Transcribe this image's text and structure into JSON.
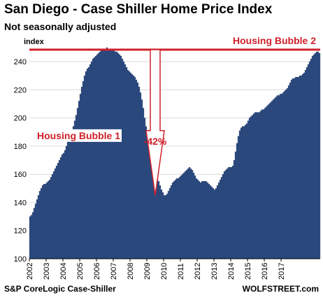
{
  "chart_data": {
    "type": "bar",
    "title": "San Diego - Case Shiller Home Price Index",
    "subtitle": "Not seasonally adjusted",
    "ylabel": "index",
    "source": "S&P CoreLogic Case-Shiller",
    "watermark": "WOLFSTREET.com",
    "ylim": [
      100,
      255
    ],
    "yticks": [
      100,
      120,
      140,
      160,
      180,
      200,
      220,
      240
    ],
    "x_tick_labels": [
      "2002",
      "2003",
      "2004",
      "2005",
      "2006",
      "2007",
      "2008",
      "2009",
      "2010",
      "2011",
      "2012",
      "2013",
      "2014",
      "2015",
      "2016",
      "2017"
    ],
    "bar_color": "#2f4f86",
    "bar_edge_color": "#172b52",
    "annotation_color": "#d0202a",
    "peak_line_value": 248.5,
    "annotations": {
      "bubble1": "Housing Bubble 1",
      "bubble2": "Housing Bubble 2",
      "decline": "-42%"
    },
    "x_start": "2002-01",
    "values": [
      130,
      131,
      133,
      136,
      139,
      142,
      145,
      148,
      150,
      152,
      153,
      153,
      154,
      155,
      156,
      158,
      160,
      162,
      164,
      166,
      168,
      170,
      172,
      174,
      175,
      177,
      180,
      183,
      185,
      187,
      190,
      194,
      198,
      202,
      207,
      212,
      217,
      222,
      226,
      230,
      233,
      235,
      236,
      238,
      240,
      242,
      243,
      244,
      245,
      246,
      247,
      248,
      249,
      249,
      249,
      250,
      249,
      249,
      248,
      248,
      248,
      247,
      247,
      246,
      245,
      244,
      242,
      240,
      238,
      236,
      234,
      233,
      232,
      231,
      230,
      229,
      227,
      225,
      222,
      218,
      213,
      207,
      200,
      194,
      188,
      182,
      177,
      173,
      169,
      165,
      162,
      158,
      155,
      152,
      149,
      147,
      145,
      145,
      146,
      148,
      150,
      152,
      154,
      155,
      156,
      157,
      157,
      158,
      159,
      160,
      161,
      162,
      163,
      164,
      165,
      164,
      163,
      161,
      159,
      157,
      156,
      155,
      154,
      155,
      155,
      155,
      155,
      154,
      153,
      152,
      151,
      150,
      149,
      150,
      152,
      154,
      156,
      158,
      160,
      162,
      163,
      164,
      165,
      165,
      165,
      166,
      170,
      176,
      182,
      187,
      191,
      193,
      194,
      194,
      195,
      196,
      198,
      200,
      201,
      202,
      203,
      204,
      204,
      204,
      204,
      205,
      206,
      206,
      207,
      208,
      209,
      210,
      211,
      212,
      213,
      214,
      215,
      216,
      216,
      217,
      217,
      218,
      219,
      220,
      221,
      223,
      225,
      227,
      228,
      228,
      229,
      229,
      229,
      230,
      230,
      231,
      232,
      234,
      236,
      238,
      240,
      242,
      244,
      245,
      246,
      247,
      247,
      246
    ]
  }
}
